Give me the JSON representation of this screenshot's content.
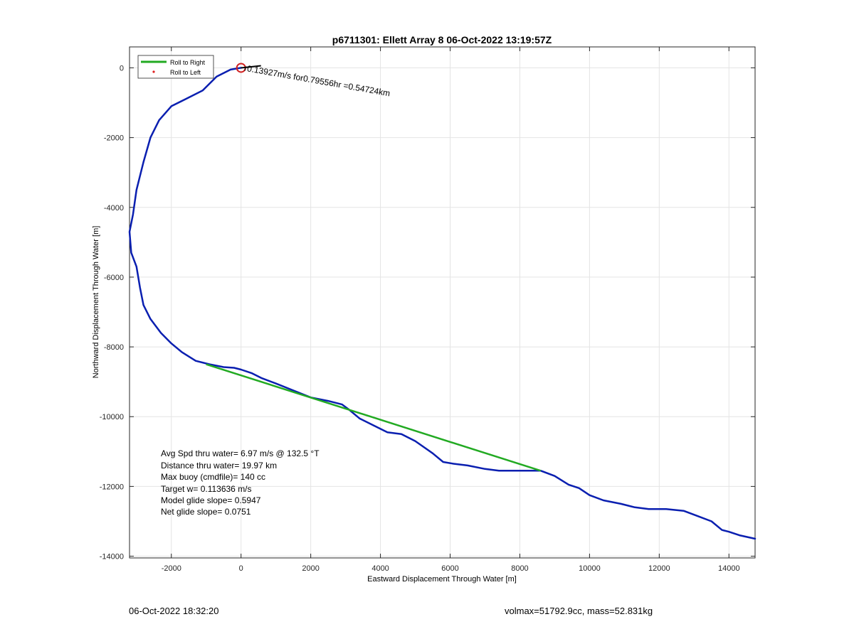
{
  "chart_data": {
    "type": "line",
    "title": "p6711301: Ellett Array 8 06-Oct-2022 13:19:57Z",
    "xlabel": "Eastward Displacement Through Water [m]",
    "ylabel": "Northward Displacement Through Water [m]",
    "xlim": [
      -3200,
      14750
    ],
    "ylim": [
      -14050,
      600
    ],
    "xticks": [
      -2000,
      0,
      2000,
      4000,
      6000,
      8000,
      10000,
      12000,
      14000
    ],
    "yticks": [
      0,
      -2000,
      -4000,
      -6000,
      -8000,
      -10000,
      -12000,
      -14000
    ],
    "xtick_labels": [
      "-2000",
      "0",
      "2000",
      "4000",
      "6000",
      "8000",
      "10000",
      "12000",
      "14000"
    ],
    "ytick_labels": [
      "0",
      "-2000",
      "-4000",
      "-6000",
      "-8000",
      "-10000",
      "-12000",
      "-14000"
    ],
    "grid": true,
    "legend": {
      "location": "top-left",
      "entries": [
        {
          "label": "Roll to Right",
          "color": "#22aa22",
          "style": "line"
        },
        {
          "label": "Roll to Left",
          "color": "#e02020",
          "style": "point"
        }
      ]
    },
    "series": [
      {
        "color": "#0a1fb0",
        "x": [
          0,
          -300,
          -700,
          -1100,
          -1600,
          -2000,
          -2350,
          -2600,
          -2800,
          -3000,
          -3100,
          -3200,
          -3150,
          -3000,
          -2900,
          -2800,
          -2600,
          -2300,
          -2000,
          -1700,
          -1300,
          -900,
          -500,
          -200,
          0,
          300,
          600,
          1000,
          1500,
          2000,
          2500,
          2900,
          3100,
          3400,
          3800,
          4200,
          4600,
          5000,
          5500,
          5800,
          6100,
          6500,
          7000,
          7400,
          7800,
          8200,
          8600,
          9000,
          9400,
          9700,
          10000,
          10400,
          10900,
          11300,
          11700,
          12200,
          12700,
          13100,
          13500,
          13800,
          14000,
          14300,
          14750
        ],
        "y": [
          0,
          -50,
          -250,
          -650,
          -900,
          -1100,
          -1500,
          -2000,
          -2700,
          -3500,
          -4200,
          -4700,
          -5300,
          -5700,
          -6300,
          -6800,
          -7200,
          -7600,
          -7900,
          -8150,
          -8400,
          -8500,
          -8580,
          -8600,
          -8650,
          -8750,
          -8900,
          -9050,
          -9250,
          -9450,
          -9550,
          -9650,
          -9800,
          -10050,
          -10250,
          -10450,
          -10500,
          -10700,
          -11050,
          -11300,
          -11350,
          -11400,
          -11500,
          -11550,
          -11550,
          -11550,
          -11550,
          -11700,
          -11950,
          -12050,
          -12250,
          -12400,
          -12500,
          -12600,
          -12650,
          -12650,
          -12700,
          -12850,
          -13000,
          -13250,
          -13300,
          -13400,
          -13500
        ]
      },
      {
        "color": "#22aa22",
        "x": [
          -1000,
          8600
        ],
        "y": [
          -8500,
          -11550
        ]
      }
    ],
    "marker": {
      "x": 0,
      "y": 0,
      "color": "#d02020"
    },
    "annotations": [
      {
        "text": "r0.13927m/s for0.79556hr =0.54724km",
        "x": 0,
        "y": 0,
        "rotation": 10
      }
    ],
    "stats": [
      "Avg Spd thru water=  6.97 m/s @ 132.5 °T",
      "Distance thru water= 19.97 km",
      "Max buoy (cmdfile)= 140 cc",
      "Target w= 0.113636 m/s",
      "Model glide slope= 0.5947",
      "Net glide slope= 0.0751"
    ]
  },
  "footer": {
    "timestamp": "06-Oct-2022 18:32:20",
    "vol_mass": "volmax=51792.9cc, mass=52.831kg"
  }
}
